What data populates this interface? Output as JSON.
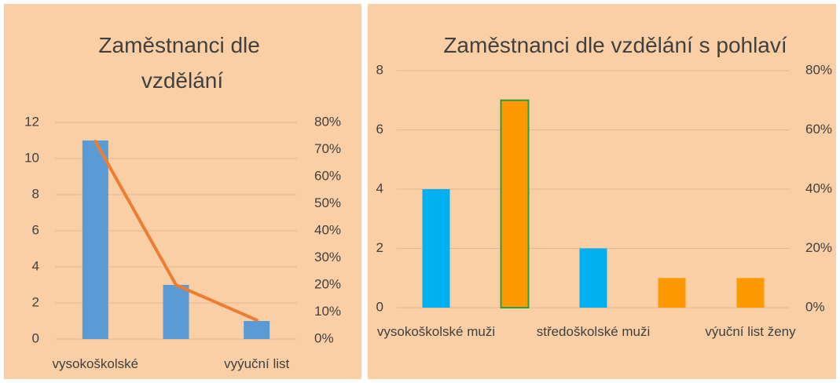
{
  "chart_data": [
    {
      "type": "combo",
      "title": "Zaměstnanci dle vzdělání",
      "categories": [
        "vysokoškolské",
        null,
        "vyýuční list"
      ],
      "series": [
        {
          "type": "bar",
          "color": "#5b9bd5",
          "values": [
            11,
            3,
            1
          ]
        },
        {
          "type": "line",
          "axis": "y2",
          "color": "#ed7d31",
          "values": [
            73,
            20,
            7
          ]
        }
      ],
      "ylim": [
        0,
        12
      ],
      "yticks": [
        0,
        2,
        4,
        6,
        8,
        10,
        12
      ],
      "y2lim": [
        0,
        80
      ],
      "y2ticks": [
        {
          "value": 0,
          "label": "0%"
        },
        {
          "value": 10,
          "label": "10%"
        },
        {
          "value": 20,
          "label": "20%"
        },
        {
          "value": 30,
          "label": "30%"
        },
        {
          "value": 40,
          "label": "40%"
        },
        {
          "value": 50,
          "label": "50%"
        },
        {
          "value": 60,
          "label": "60%"
        },
        {
          "value": 70,
          "label": "70%"
        },
        {
          "value": 80,
          "label": "80%"
        }
      ],
      "grid": true
    },
    {
      "type": "bar",
      "title": "Zaměstnanci dle vzdělání s pohlaví",
      "categories": [
        "vysokoškolské muži",
        null,
        "středoškolské muži",
        null,
        "výuční list ženy"
      ],
      "values": [
        4,
        7,
        2,
        1,
        1
      ],
      "colors": [
        "#00b0f0",
        "#ff9900",
        "#00b0f0",
        "#ff9900",
        "#ff9900"
      ],
      "borders": [
        null,
        "#2e9e3a",
        null,
        null,
        null
      ],
      "ylim": [
        0,
        8
      ],
      "yticks": [
        0,
        2,
        4,
        6,
        8
      ],
      "y2lim": [
        0,
        80
      ],
      "y2ticks": [
        {
          "value": 0,
          "label": "0%"
        },
        {
          "value": 20,
          "label": "20%"
        },
        {
          "value": 40,
          "label": "40%"
        },
        {
          "value": 60,
          "label": "60%"
        },
        {
          "value": 80,
          "label": "80%"
        }
      ],
      "grid": true
    }
  ]
}
